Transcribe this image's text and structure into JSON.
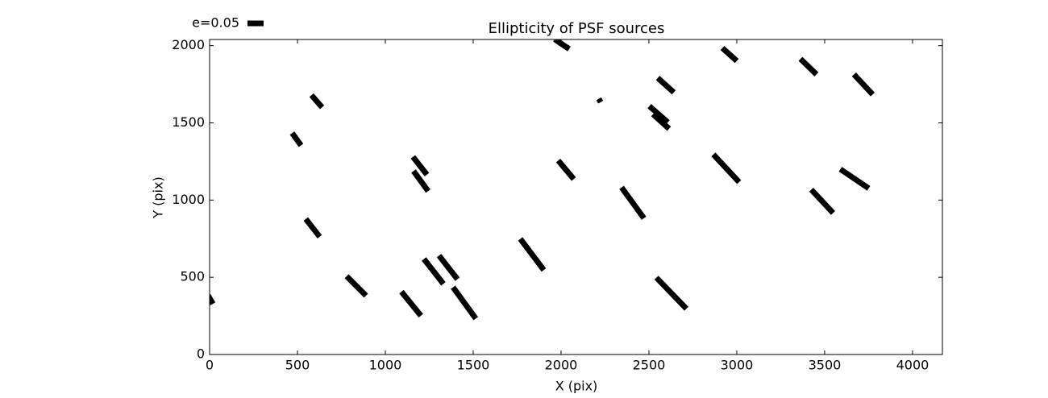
{
  "chart_data": {
    "type": "whisker",
    "title": "Ellipticity of PSF sources",
    "xlabel": "X (pix)",
    "ylabel": "Y (pix)",
    "color": "#000000",
    "key": {
      "label": "e=0.05",
      "value": 0.05
    },
    "xlim": [
      0,
      4170
    ],
    "ylim": [
      0,
      2040
    ],
    "xticks": [
      0,
      500,
      1000,
      1500,
      2000,
      2500,
      3000,
      3500,
      4000
    ],
    "yticks": [
      0,
      500,
      1000,
      1500,
      2000
    ],
    "x": [
      2005,
      2959,
      3408,
      3720,
      2596,
      2220,
      610,
      2555,
      2569,
      495,
      1197,
      1202,
      2028,
      2940,
      3670,
      3486,
      2408,
      587,
      1835,
      1358,
      1275,
      835,
      2628,
      1450,
      1147,
      5
    ],
    "y": [
      2010,
      1943,
      1864,
      1749,
      1744,
      1645,
      1640,
      1556,
      1509,
      1394,
      1222,
      1123,
      1196,
      1206,
      1138,
      992,
      982,
      820,
      648,
      564,
      538,
      444,
      397,
      334,
      329,
      355
    ],
    "e": [
      0.054,
      0.06,
      0.069,
      0.085,
      0.067,
      0.012,
      0.05,
      0.076,
      0.067,
      0.047,
      0.07,
      0.077,
      0.075,
      0.117,
      0.106,
      0.099,
      0.118,
      0.07,
      0.121,
      0.093,
      0.098,
      0.085,
      0.134,
      0.12,
      0.096,
      0.03
    ],
    "angle": [
      -34,
      -42,
      -44,
      -47,
      -42,
      -60,
      -49,
      -41,
      -42,
      -54,
      -52,
      -54,
      -50,
      -47,
      -34,
      -47,
      -54,
      -52,
      -53,
      -52,
      -52,
      -45,
      -46,
      -54,
      -51,
      -60
    ]
  }
}
